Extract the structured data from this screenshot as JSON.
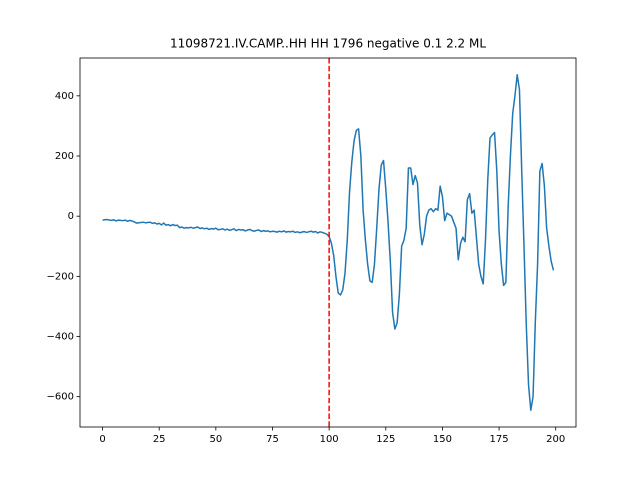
{
  "chart_data": {
    "type": "line",
    "title": "11098721.IV.CAMP..HH HH 1796 negative 0.1 2.2 ML",
    "x": [
      0,
      1,
      2,
      3,
      4,
      5,
      6,
      7,
      8,
      9,
      10,
      11,
      12,
      13,
      14,
      15,
      16,
      17,
      18,
      19,
      20,
      21,
      22,
      23,
      24,
      25,
      26,
      27,
      28,
      29,
      30,
      31,
      32,
      33,
      34,
      35,
      36,
      37,
      38,
      39,
      40,
      41,
      42,
      43,
      44,
      45,
      46,
      47,
      48,
      49,
      50,
      51,
      52,
      53,
      54,
      55,
      56,
      57,
      58,
      59,
      60,
      61,
      62,
      63,
      64,
      65,
      66,
      67,
      68,
      69,
      70,
      71,
      72,
      73,
      74,
      75,
      76,
      77,
      78,
      79,
      80,
      81,
      82,
      83,
      84,
      85,
      86,
      87,
      88,
      89,
      90,
      91,
      92,
      93,
      94,
      95,
      96,
      97,
      98,
      99,
      100,
      101,
      102,
      103,
      104,
      105,
      106,
      107,
      108,
      109,
      110,
      111,
      112,
      113,
      114,
      115,
      116,
      117,
      118,
      119,
      120,
      121,
      122,
      123,
      124,
      125,
      126,
      127,
      128,
      129,
      130,
      131,
      132,
      133,
      134,
      135,
      136,
      137,
      138,
      139,
      140,
      141,
      142,
      143,
      144,
      145,
      146,
      147,
      148,
      149,
      150,
      151,
      152,
      153,
      154,
      155,
      156,
      157,
      158,
      159,
      160,
      161,
      162,
      163,
      164,
      165,
      166,
      167,
      168,
      169,
      170,
      171,
      172,
      173,
      174,
      175,
      176,
      177,
      178,
      179,
      180,
      181,
      182,
      183,
      184,
      185,
      186,
      187,
      188,
      189,
      190,
      191,
      192,
      193,
      194,
      195,
      196,
      197,
      198,
      199
    ],
    "series": [
      {
        "color": "#1f77b4",
        "values": [
          -13,
          -12,
          -11,
          -13,
          -14,
          -12,
          -16,
          -13,
          -14,
          -15,
          -13,
          -17,
          -14,
          -16,
          -19,
          -23,
          -22,
          -21,
          -20,
          -22,
          -21,
          -20,
          -24,
          -22,
          -26,
          -24,
          -29,
          -23,
          -30,
          -28,
          -32,
          -28,
          -31,
          -30,
          -38,
          -36,
          -40,
          -38,
          -39,
          -37,
          -40,
          -38,
          -36,
          -41,
          -39,
          -42,
          -40,
          -44,
          -41,
          -43,
          -40,
          -45,
          -44,
          -42,
          -46,
          -43,
          -47,
          -45,
          -42,
          -48,
          -44,
          -46,
          -45,
          -49,
          -46,
          -44,
          -48,
          -50,
          -47,
          -46,
          -51,
          -48,
          -50,
          -49,
          -52,
          -50,
          -51,
          -53,
          -50,
          -52,
          -49,
          -53,
          -51,
          -52,
          -50,
          -54,
          -52,
          -55,
          -53,
          -51,
          -54,
          -52,
          -50,
          -53,
          -51,
          -56,
          -52,
          -54,
          -57,
          -60,
          -68,
          -90,
          -130,
          -200,
          -255,
          -262,
          -245,
          -190,
          -80,
          80,
          180,
          250,
          285,
          290,
          200,
          20,
          -80,
          -160,
          -215,
          -220,
          -160,
          -40,
          90,
          170,
          185,
          90,
          -20,
          -150,
          -320,
          -375,
          -355,
          -260,
          -100,
          -80,
          -40,
          160,
          160,
          105,
          135,
          110,
          -30,
          -95,
          -60,
          0,
          20,
          25,
          15,
          25,
          20,
          100,
          65,
          -15,
          10,
          5,
          0,
          -20,
          -40,
          -145,
          -90,
          -70,
          -85,
          55,
          75,
          10,
          20,
          -70,
          -160,
          -200,
          -225,
          -80,
          120,
          260,
          270,
          278,
          150,
          -50,
          -160,
          -230,
          -220,
          30,
          200,
          340,
          400,
          470,
          420,
          150,
          -100,
          -360,
          -560,
          -645,
          -600,
          -350,
          -160,
          150,
          175,
          100,
          -40,
          -100,
          -150,
          -180
        ]
      }
    ],
    "vline": {
      "x": 100,
      "color": "#ff0000"
    },
    "xlim": [
      -9.95,
      208.95
    ],
    "xticks": [
      0,
      25,
      50,
      75,
      100,
      125,
      150,
      175,
      200
    ],
    "ylim": [
      -700.75,
      525.75
    ],
    "yticks": [
      {
        "value": -600,
        "label": "−600"
      },
      {
        "value": -400,
        "label": "−400"
      },
      {
        "value": -200,
        "label": "−200"
      },
      0,
      200,
      400
    ]
  }
}
